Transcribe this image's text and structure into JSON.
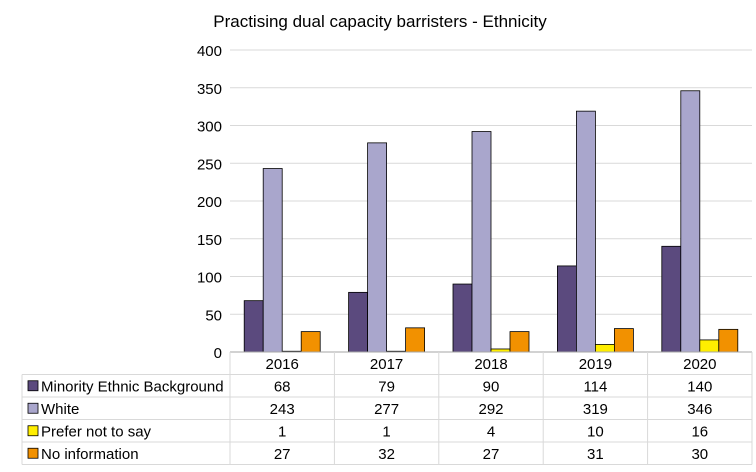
{
  "chart_data": {
    "type": "bar",
    "title": "Practising dual capacity barristers - Ethnicity",
    "xlabel": "",
    "ylabel": "",
    "ylim": [
      0,
      400
    ],
    "yticks": [
      0,
      50,
      100,
      150,
      200,
      250,
      300,
      350,
      400
    ],
    "grid": true,
    "legend": "data-table",
    "categories": [
      "2016",
      "2017",
      "2018",
      "2019",
      "2020"
    ],
    "series": [
      {
        "name": "Minority Ethnic Background",
        "color": "#5b4a7e",
        "values": [
          68,
          79,
          90,
          114,
          140
        ]
      },
      {
        "name": "White",
        "color": "#a9a6cc",
        "values": [
          243,
          277,
          292,
          319,
          346
        ]
      },
      {
        "name": "Prefer not to say",
        "color": "#ffee00",
        "values": [
          1,
          1,
          4,
          10,
          16
        ]
      },
      {
        "name": "No information",
        "color": "#f29100",
        "values": [
          27,
          32,
          27,
          31,
          30
        ]
      }
    ]
  }
}
